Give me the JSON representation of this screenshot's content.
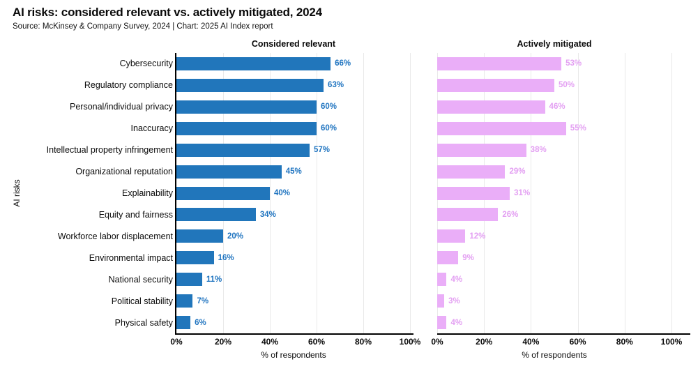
{
  "header": {
    "title": "AI risks: considered relevant vs. actively mitigated, 2024",
    "source": "Source: McKinsey & Company Survey, 2024 | Chart: 2025 AI Index report"
  },
  "chart_data": {
    "type": "bar",
    "orientation": "horizontal",
    "title": "AI risks: considered relevant vs. actively mitigated, 2024",
    "categories": [
      "Cybersecurity",
      "Regulatory compliance",
      "Personal/individual privacy",
      "Inaccuracy",
      "Intellectual property infringement",
      "Organizational reputation",
      "Explainability",
      "Equity and fairness",
      "Workforce labor displacement",
      "Environmental impact",
      "National security",
      "Political stability",
      "Physical safety"
    ],
    "series": [
      {
        "name": "Considered relevant",
        "bar_color": "#2176bb",
        "label_color": "#1f74c0",
        "values": [
          66,
          63,
          60,
          60,
          57,
          45,
          40,
          34,
          20,
          16,
          11,
          7,
          6
        ],
        "labels": [
          "66%",
          "63%",
          "60%",
          "60%",
          "57%",
          "45%",
          "40%",
          "34%",
          "20%",
          "16%",
          "11%",
          "7%",
          "6%"
        ]
      },
      {
        "name": "Actively mitigated",
        "bar_color": "#eaaef8",
        "label_color": "#e39ff2",
        "values": [
          53,
          50,
          46,
          55,
          38,
          29,
          31,
          26,
          12,
          9,
          4,
          3,
          4
        ],
        "labels": [
          "53%",
          "50%",
          "46%",
          "55%",
          "38%",
          "29%",
          "31%",
          "26%",
          "12%",
          "9%",
          "4%",
          "3%",
          "4%"
        ]
      }
    ],
    "xlabel": "% of respondents",
    "ylabel": "AI risks",
    "xlim": [
      0,
      100
    ],
    "xticks": [
      "0%",
      "20%",
      "40%",
      "60%",
      "80%",
      "100%"
    ],
    "xtick_values": [
      0,
      20,
      40,
      60,
      80,
      100
    ],
    "grid": "vertical",
    "legend_position": "none"
  }
}
